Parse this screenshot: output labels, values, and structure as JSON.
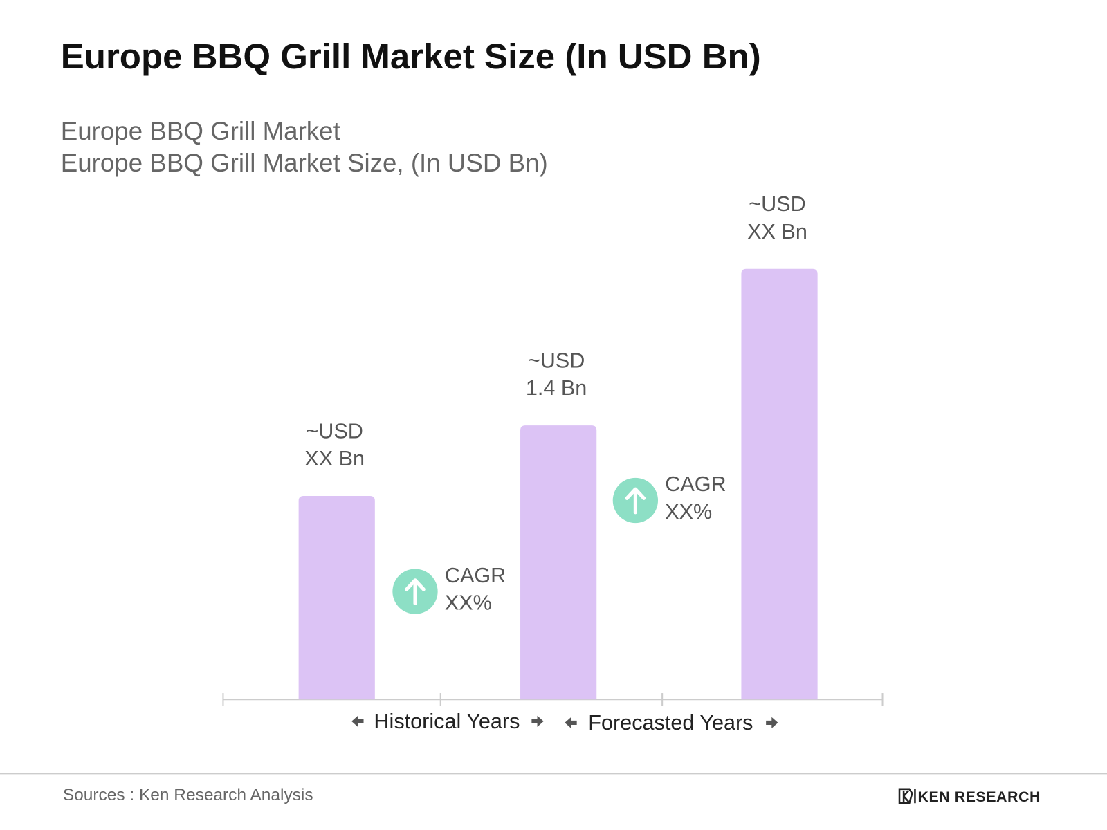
{
  "chart_data": {
    "type": "bar",
    "title": "Europe BBQ Grill Market Size (In USD Bn)",
    "subtitle": [
      "Europe BBQ Grill Market",
      "Europe BBQ Grill Market Size, (In USD Bn)"
    ],
    "categories": [
      null,
      null,
      null
    ],
    "values": [
      1.04,
      1.4,
      2.2
    ],
    "value_labels": [
      [
        "~USD",
        "XX Bn"
      ],
      [
        "~USD",
        "1.4 Bn"
      ],
      [
        "~USD",
        "XX Bn"
      ]
    ],
    "color": "#dcc3f5",
    "annotations": [
      [
        "CAGR",
        "XX%"
      ],
      [
        "CAGR",
        "XX%"
      ]
    ],
    "annotation_color": "#8ddfc5",
    "period_labels": [
      "Historical Years",
      "Forecasted Years"
    ],
    "source": "Sources : Ken Research Analysis",
    "logo": "KEN RESEARCH"
  }
}
